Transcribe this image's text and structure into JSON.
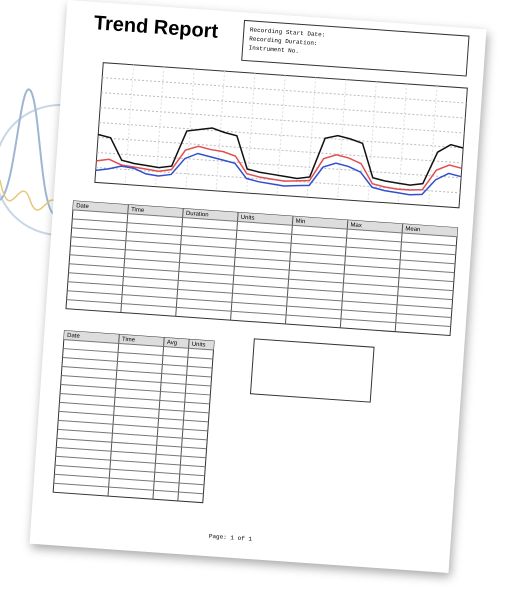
{
  "header": {
    "title": "Trend Report",
    "info": [
      "Recording Start Date:",
      "Recording Duration:",
      "Instrument No."
    ]
  },
  "chart": {
    "ylim": [
      0,
      100
    ],
    "series": [
      {
        "color": "#111111",
        "values": [
          40,
          38,
          20,
          18,
          17,
          16,
          18,
          48,
          50,
          52,
          49,
          47,
          20,
          18,
          17,
          16,
          15,
          17,
          50,
          53,
          51,
          48,
          20,
          18,
          17,
          16,
          18,
          45,
          52,
          50
        ]
      },
      {
        "color": "#e05050",
        "values": [
          18,
          20,
          16,
          15,
          14,
          13,
          15,
          32,
          36,
          34,
          33,
          30,
          16,
          14,
          13,
          12,
          13,
          14,
          33,
          37,
          35,
          31,
          15,
          13,
          12,
          12,
          13,
          30,
          35,
          33
        ]
      },
      {
        "color": "#3050d0",
        "values": [
          10,
          12,
          15,
          14,
          10,
          9,
          11,
          25,
          30,
          28,
          26,
          24,
          12,
          10,
          9,
          8,
          9,
          10,
          26,
          30,
          28,
          24,
          12,
          10,
          9,
          8,
          9,
          22,
          28,
          26
        ]
      }
    ]
  },
  "table": {
    "columns": [
      "Date",
      "Time",
      "Duration",
      "Units",
      "Min",
      "Max",
      "Mean"
    ]
  },
  "log_table": {
    "columns": [
      "Date",
      "Time",
      "Avg",
      "Units"
    ]
  },
  "footer": "Page: 1 of 1"
}
